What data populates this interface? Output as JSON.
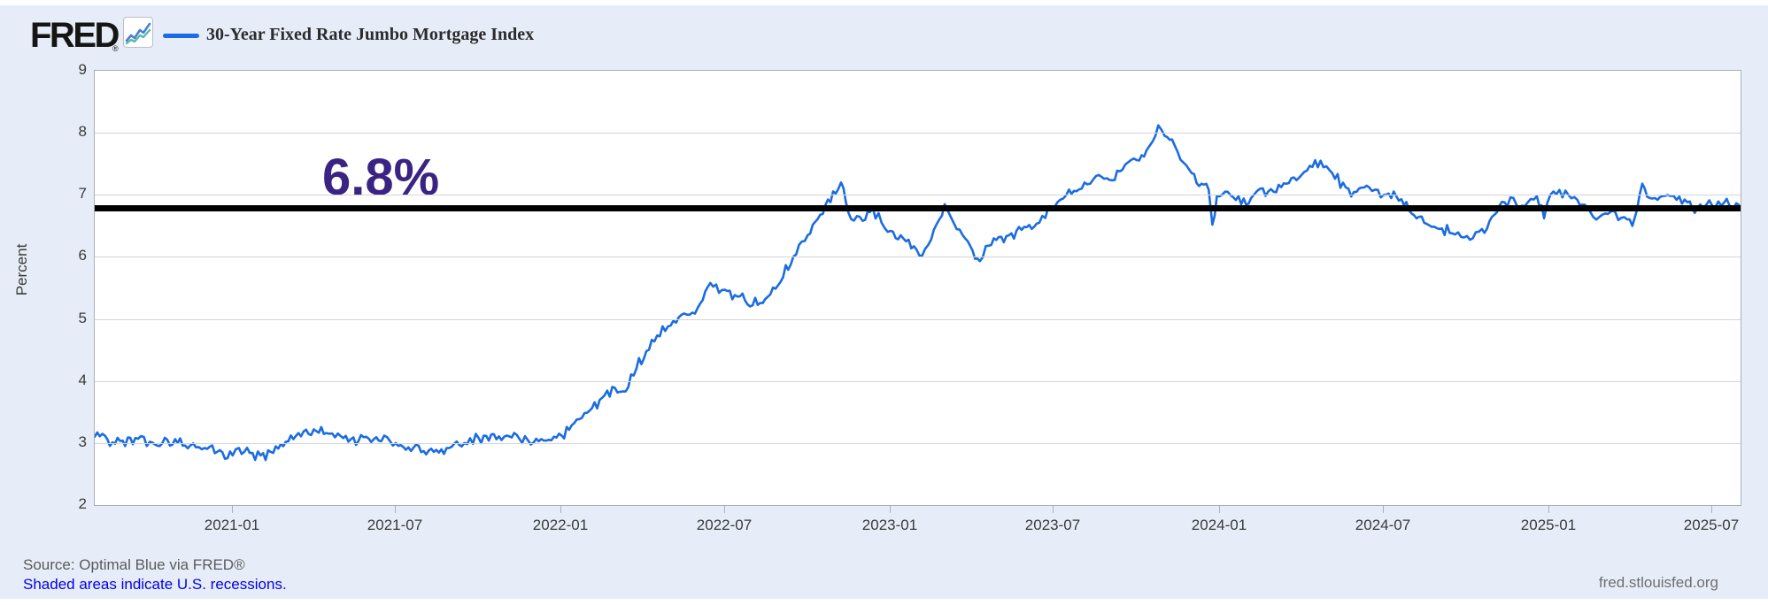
{
  "page": {
    "background": "#e7edf8"
  },
  "header": {
    "logo_text": "FRED",
    "logo_registered_mark": "®",
    "chart_icon": "line-chart-icon",
    "legend": {
      "series_label": "30-Year Fixed Rate Jumbo Mortgage Index",
      "line_color": "#1b6ce0"
    }
  },
  "footer": {
    "source_text": "Source: Optimal Blue via FRED®",
    "recession_note": "Shaded areas indicate U.S. recessions.",
    "recession_note_color": "#3166a6",
    "site_url": "fred.stlouisfed.org"
  },
  "chart_data": {
    "type": "line",
    "title": "30-Year Fixed Rate Jumbo Mortgage Index",
    "ylabel": "Percent",
    "ylim": [
      2,
      9
    ],
    "y_ticks": [
      2,
      3,
      4,
      5,
      6,
      7,
      8,
      9
    ],
    "grid": true,
    "legend_position": "top-left",
    "x_domain": [
      "2020-08-01",
      "2025-08-01"
    ],
    "x_ticks": [
      {
        "date": "2021-01-01",
        "label": "2021-01"
      },
      {
        "date": "2021-07-01",
        "label": "2021-07"
      },
      {
        "date": "2022-01-01",
        "label": "2022-01"
      },
      {
        "date": "2022-07-01",
        "label": "2022-07"
      },
      {
        "date": "2023-01-01",
        "label": "2023-01"
      },
      {
        "date": "2023-07-01",
        "label": "2023-07"
      },
      {
        "date": "2024-01-01",
        "label": "2024-01"
      },
      {
        "date": "2024-07-01",
        "label": "2024-07"
      },
      {
        "date": "2025-01-01",
        "label": "2025-01"
      },
      {
        "date": "2025-07-01",
        "label": "2025-07"
      }
    ],
    "line_color": "#1b6ce0",
    "jitter": 0.06,
    "annotation": {
      "label": "6.8%",
      "line_value": 6.78,
      "line_color": "#000000",
      "text_color": "#3b2383"
    },
    "series": [
      {
        "name": "30-Year Fixed Rate Jumbo Mortgage Index",
        "points": [
          [
            "2020-08-01",
            3.1
          ],
          [
            "2020-08-15",
            3.06
          ],
          [
            "2020-09-01",
            3.04
          ],
          [
            "2020-09-15",
            3.08
          ],
          [
            "2020-10-01",
            3.02
          ],
          [
            "2020-10-15",
            3.0
          ],
          [
            "2020-11-01",
            3.0
          ],
          [
            "2020-11-15",
            2.96
          ],
          [
            "2020-12-01",
            2.92
          ],
          [
            "2020-12-15",
            2.86
          ],
          [
            "2021-01-01",
            2.8
          ],
          [
            "2021-01-08",
            2.92
          ],
          [
            "2021-01-20",
            2.84
          ],
          [
            "2021-02-01",
            2.8
          ],
          [
            "2021-02-15",
            2.84
          ],
          [
            "2021-03-01",
            3.02
          ],
          [
            "2021-03-15",
            3.16
          ],
          [
            "2021-04-01",
            3.22
          ],
          [
            "2021-04-15",
            3.16
          ],
          [
            "2021-05-01",
            3.11
          ],
          [
            "2021-05-15",
            3.09
          ],
          [
            "2021-06-01",
            3.07
          ],
          [
            "2021-06-15",
            3.03
          ],
          [
            "2021-07-01",
            3.0
          ],
          [
            "2021-07-15",
            2.93
          ],
          [
            "2021-08-01",
            2.87
          ],
          [
            "2021-08-15",
            2.89
          ],
          [
            "2021-09-01",
            2.94
          ],
          [
            "2021-09-15",
            3.0
          ],
          [
            "2021-10-01",
            3.08
          ],
          [
            "2021-10-15",
            3.14
          ],
          [
            "2021-11-01",
            3.12
          ],
          [
            "2021-11-15",
            3.07
          ],
          [
            "2021-12-01",
            3.01
          ],
          [
            "2021-12-15",
            3.04
          ],
          [
            "2022-01-01",
            3.12
          ],
          [
            "2022-01-15",
            3.32
          ],
          [
            "2022-02-01",
            3.52
          ],
          [
            "2022-02-15",
            3.73
          ],
          [
            "2022-03-01",
            3.89
          ],
          [
            "2022-03-10",
            3.83
          ],
          [
            "2022-03-25",
            4.2
          ],
          [
            "2022-04-05",
            4.48
          ],
          [
            "2022-04-20",
            4.72
          ],
          [
            "2022-05-05",
            4.97
          ],
          [
            "2022-05-20",
            5.07
          ],
          [
            "2022-06-01",
            5.18
          ],
          [
            "2022-06-15",
            5.58
          ],
          [
            "2022-07-01",
            5.47
          ],
          [
            "2022-07-15",
            5.36
          ],
          [
            "2022-08-01",
            5.22
          ],
          [
            "2022-08-15",
            5.32
          ],
          [
            "2022-09-01",
            5.6
          ],
          [
            "2022-09-15",
            6.0
          ],
          [
            "2022-10-01",
            6.35
          ],
          [
            "2022-10-15",
            6.68
          ],
          [
            "2022-11-01",
            7.02
          ],
          [
            "2022-11-07",
            7.2
          ],
          [
            "2022-11-15",
            6.72
          ],
          [
            "2022-12-01",
            6.58
          ],
          [
            "2022-12-12",
            6.8
          ],
          [
            "2022-12-22",
            6.55
          ],
          [
            "2023-01-01",
            6.42
          ],
          [
            "2023-01-15",
            6.3
          ],
          [
            "2023-02-05",
            6.02
          ],
          [
            "2023-02-15",
            6.28
          ],
          [
            "2023-03-02",
            6.85
          ],
          [
            "2023-03-12",
            6.55
          ],
          [
            "2023-03-22",
            6.35
          ],
          [
            "2023-04-02",
            6.1
          ],
          [
            "2023-04-10",
            5.93
          ],
          [
            "2023-04-20",
            6.18
          ],
          [
            "2023-05-01",
            6.32
          ],
          [
            "2023-05-15",
            6.38
          ],
          [
            "2023-06-01",
            6.48
          ],
          [
            "2023-06-15",
            6.55
          ],
          [
            "2023-06-25",
            6.8
          ],
          [
            "2023-07-05",
            6.88
          ],
          [
            "2023-07-15",
            7.0
          ],
          [
            "2023-08-01",
            7.1
          ],
          [
            "2023-08-20",
            7.32
          ],
          [
            "2023-09-01",
            7.24
          ],
          [
            "2023-09-15",
            7.4
          ],
          [
            "2023-10-01",
            7.56
          ],
          [
            "2023-10-12",
            7.72
          ],
          [
            "2023-10-25",
            8.12
          ],
          [
            "2023-11-01",
            7.95
          ],
          [
            "2023-11-12",
            7.8
          ],
          [
            "2023-11-22",
            7.52
          ],
          [
            "2023-12-01",
            7.35
          ],
          [
            "2023-12-12",
            7.18
          ],
          [
            "2023-12-20",
            7.08
          ],
          [
            "2023-12-24",
            6.52
          ],
          [
            "2023-12-29",
            6.98
          ],
          [
            "2024-01-10",
            7.05
          ],
          [
            "2024-01-25",
            6.85
          ],
          [
            "2024-02-05",
            6.95
          ],
          [
            "2024-02-15",
            7.1
          ],
          [
            "2024-03-01",
            7.05
          ],
          [
            "2024-03-15",
            7.18
          ],
          [
            "2024-04-01",
            7.32
          ],
          [
            "2024-04-22",
            7.55
          ],
          [
            "2024-05-05",
            7.35
          ],
          [
            "2024-05-20",
            7.12
          ],
          [
            "2024-06-01",
            7.05
          ],
          [
            "2024-06-15",
            7.12
          ],
          [
            "2024-07-01",
            7.0
          ],
          [
            "2024-07-15",
            6.98
          ],
          [
            "2024-08-01",
            6.7
          ],
          [
            "2024-08-15",
            6.55
          ],
          [
            "2024-09-01",
            6.45
          ],
          [
            "2024-09-15",
            6.38
          ],
          [
            "2024-09-25",
            6.32
          ],
          [
            "2024-10-08",
            6.3
          ],
          [
            "2024-10-18",
            6.45
          ],
          [
            "2024-11-01",
            6.68
          ],
          [
            "2024-11-12",
            6.88
          ],
          [
            "2024-11-22",
            6.95
          ],
          [
            "2024-11-28",
            6.75
          ],
          [
            "2024-12-08",
            6.88
          ],
          [
            "2024-12-18",
            6.98
          ],
          [
            "2024-12-26",
            6.62
          ],
          [
            "2025-01-02",
            7.0
          ],
          [
            "2025-01-12",
            7.08
          ],
          [
            "2025-01-22",
            7.0
          ],
          [
            "2025-02-01",
            6.92
          ],
          [
            "2025-02-12",
            6.78
          ],
          [
            "2025-02-22",
            6.6
          ],
          [
            "2025-03-04",
            6.7
          ],
          [
            "2025-03-15",
            6.72
          ],
          [
            "2025-03-25",
            6.64
          ],
          [
            "2025-04-03",
            6.5
          ],
          [
            "2025-04-08",
            6.75
          ],
          [
            "2025-04-14",
            7.18
          ],
          [
            "2025-04-22",
            6.95
          ],
          [
            "2025-05-01",
            6.92
          ],
          [
            "2025-05-12",
            7.0
          ],
          [
            "2025-05-22",
            6.92
          ],
          [
            "2025-06-03",
            6.88
          ],
          [
            "2025-06-14",
            6.78
          ],
          [
            "2025-06-24",
            6.84
          ],
          [
            "2025-07-04",
            6.8
          ],
          [
            "2025-07-14",
            6.88
          ],
          [
            "2025-07-22",
            6.78
          ],
          [
            "2025-07-30",
            6.84
          ]
        ]
      }
    ]
  }
}
